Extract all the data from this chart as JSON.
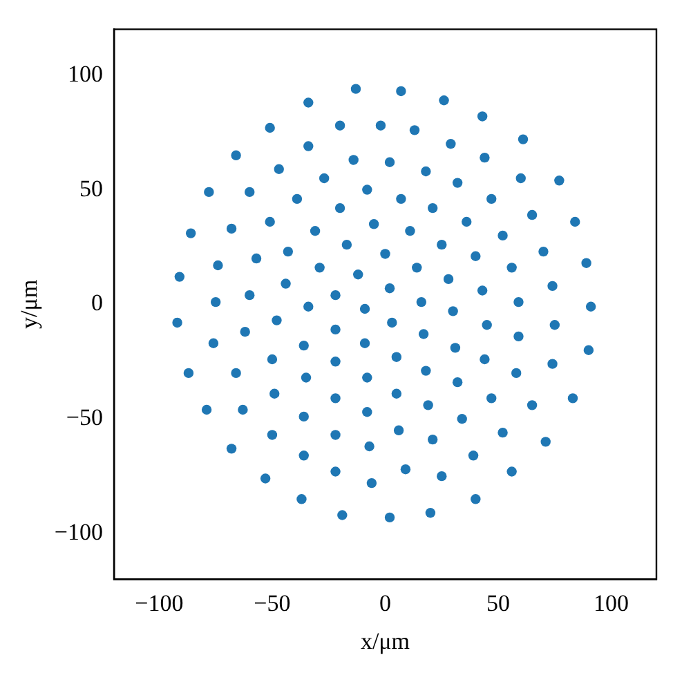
{
  "chart_data": {
    "type": "scatter",
    "xlabel": "x/μm",
    "ylabel": "y/μm",
    "xlim": [
      -120,
      120
    ],
    "ylim": [
      -120,
      120
    ],
    "xticks": [
      {
        "value": -100,
        "label": "−100"
      },
      {
        "value": -50,
        "label": "−50"
      },
      0,
      50,
      100
    ],
    "yticks": [
      {
        "value": -100,
        "label": "−100"
      },
      {
        "value": -50,
        "label": "−50"
      },
      0,
      50,
      100
    ],
    "grid": false,
    "marker": "circle",
    "series": [
      {
        "color": "#1f77b4",
        "x": [
          -13,
          -34,
          -51,
          -20,
          -2,
          -66,
          -34,
          -14,
          2,
          -47,
          -27,
          -78,
          -60,
          -39,
          -8,
          -20,
          -86,
          -68,
          -51,
          -31,
          -5,
          -43,
          -17,
          -74,
          -57,
          -29,
          0,
          -91,
          -44,
          -12,
          -60,
          -75,
          -34,
          -22,
          2,
          -9,
          7,
          26,
          43,
          13,
          29,
          61,
          18,
          44,
          32,
          60,
          77,
          7,
          21,
          47,
          36,
          65,
          84,
          11,
          25,
          52,
          40,
          70,
          89,
          14,
          56,
          28,
          43,
          74,
          16,
          59,
          91,
          30,
          -92,
          -48,
          -62,
          -22,
          3,
          -76,
          -36,
          -9,
          -50,
          -22,
          -87,
          -66,
          -35,
          -8,
          -49,
          -22,
          -79,
          -63,
          -36,
          -8,
          -50,
          -22,
          -68,
          -36,
          -7,
          -53,
          -22,
          -6,
          -37,
          -19,
          2,
          45,
          75,
          17,
          31,
          59,
          90,
          5,
          44,
          74,
          18,
          58,
          32,
          5,
          47,
          65,
          83,
          19,
          34,
          6,
          52,
          71,
          21,
          39,
          9,
          25,
          56,
          40,
          20
        ],
        "values": [
          94,
          88,
          77,
          78,
          78,
          65,
          69,
          63,
          62,
          59,
          55,
          49,
          49,
          46,
          50,
          42,
          31,
          33,
          36,
          32,
          35,
          23,
          26,
          17,
          20,
          16,
          22,
          12,
          9,
          13,
          4,
          1,
          -1,
          4,
          7,
          -2,
          93,
          89,
          82,
          76,
          70,
          72,
          58,
          64,
          53,
          55,
          54,
          46,
          42,
          46,
          36,
          39,
          36,
          32,
          26,
          30,
          21,
          23,
          18,
          16,
          16,
          11,
          6,
          8,
          1,
          1,
          -1,
          -3,
          -8,
          -7,
          -12,
          -11,
          -8,
          -17,
          -18,
          -17,
          -24,
          -25,
          -30,
          -30,
          -32,
          -32,
          -39,
          -41,
          -46,
          -46,
          -49,
          -47,
          -57,
          -57,
          -63,
          -66,
          -62,
          -76,
          -73,
          -78,
          -85,
          -92,
          -93,
          -9,
          -9,
          -13,
          -19,
          -14,
          -20,
          -23,
          -24,
          -26,
          -29,
          -30,
          -34,
          -39,
          -41,
          -44,
          -41,
          -44,
          -50,
          -55,
          -56,
          -60,
          -59,
          -66,
          -72,
          -75,
          -73,
          -85,
          -91
        ]
      }
    ]
  }
}
